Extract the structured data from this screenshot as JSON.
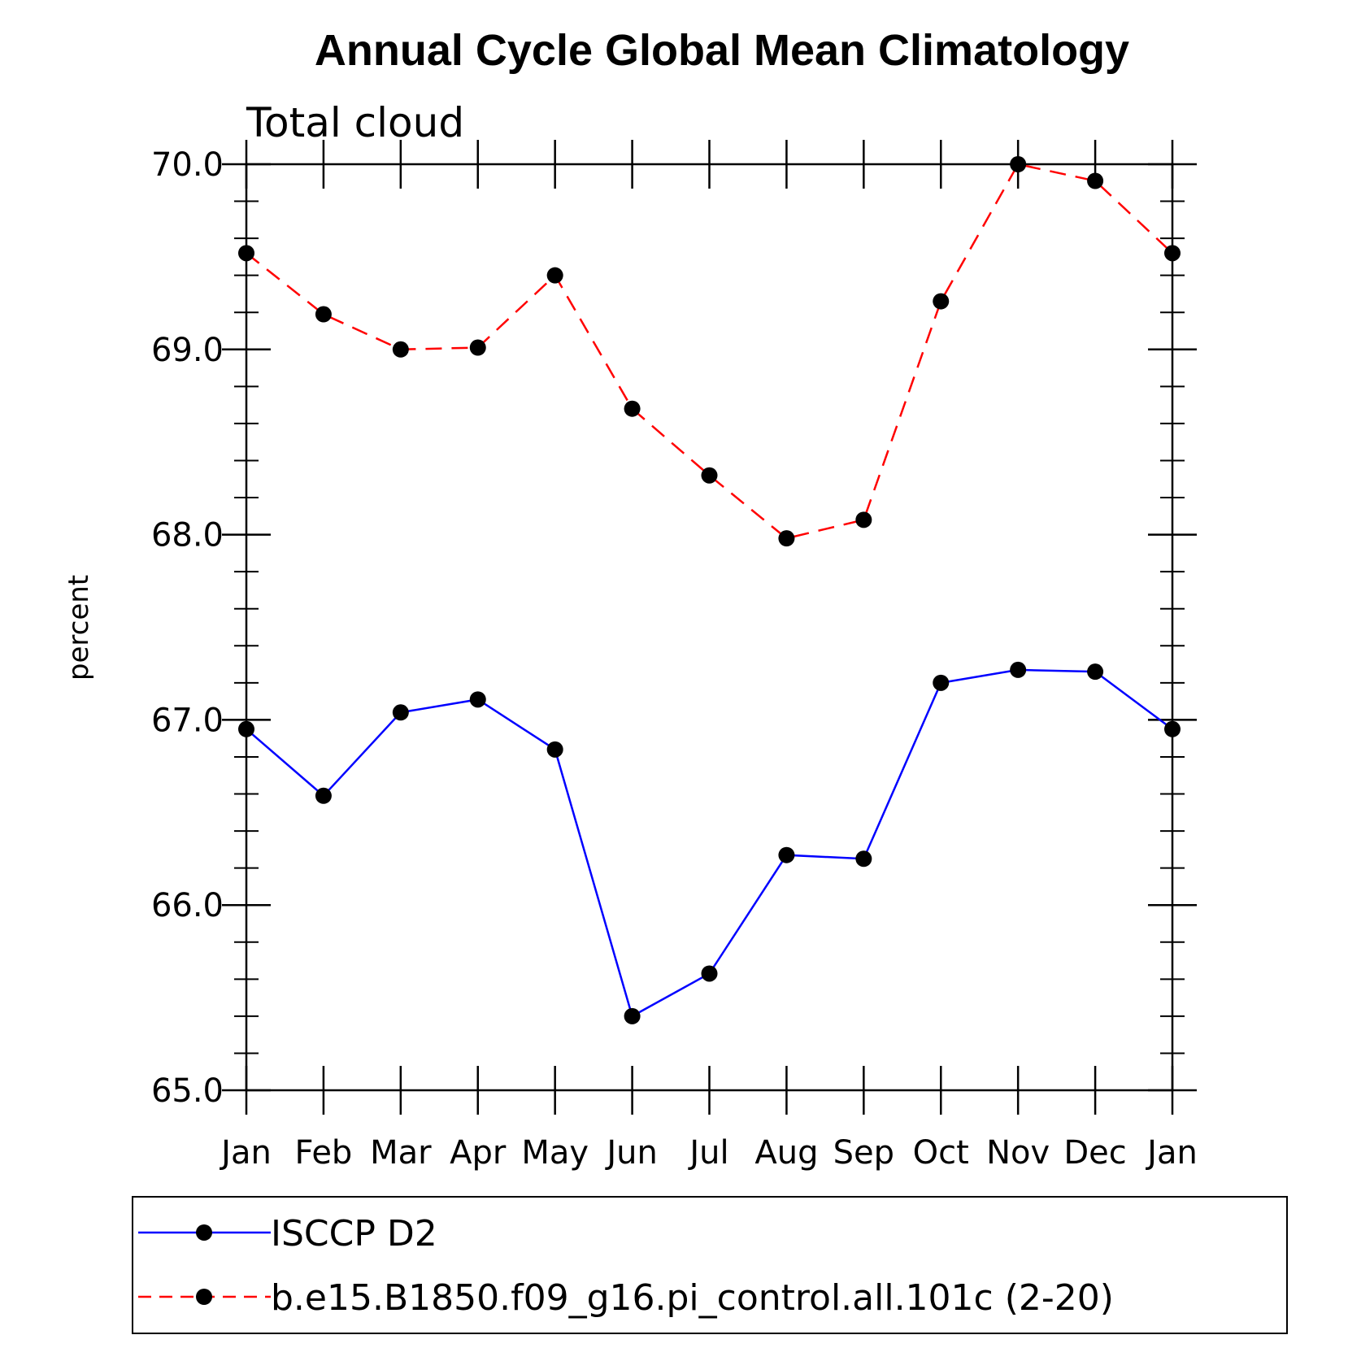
{
  "chart_data": {
    "type": "line",
    "title": "Annual Cycle Global Mean Climatology",
    "subtitle": "Total cloud",
    "ylabel": "percent",
    "xlabel": "",
    "categories": [
      "Jan",
      "Feb",
      "Mar",
      "Apr",
      "May",
      "Jun",
      "Jul",
      "Aug",
      "Sep",
      "Oct",
      "Nov",
      "Dec",
      "Jan"
    ],
    "ylim": [
      65.0,
      70.0
    ],
    "yticks": [
      "65.0",
      "66.0",
      "67.0",
      "68.0",
      "69.0",
      "70.0"
    ],
    "grid": false,
    "legend_position": "bottom",
    "series": [
      {
        "name": "ISCCP D2",
        "color": "#0000ff",
        "line_style": "solid",
        "marker": "filled-circle",
        "values": [
          66.95,
          66.59,
          67.04,
          67.11,
          66.84,
          65.4,
          65.63,
          66.27,
          66.25,
          67.2,
          67.27,
          67.26,
          66.95
        ]
      },
      {
        "name": "b.e15.B1850.f09_g16.pi_control.all.101c (2-20)",
        "color": "#ff0000",
        "line_style": "dashed",
        "marker": "filled-circle",
        "values": [
          69.52,
          69.19,
          69.0,
          69.01,
          69.4,
          68.68,
          68.32,
          67.98,
          68.08,
          69.26,
          70.0,
          69.91,
          69.52
        ]
      }
    ]
  }
}
